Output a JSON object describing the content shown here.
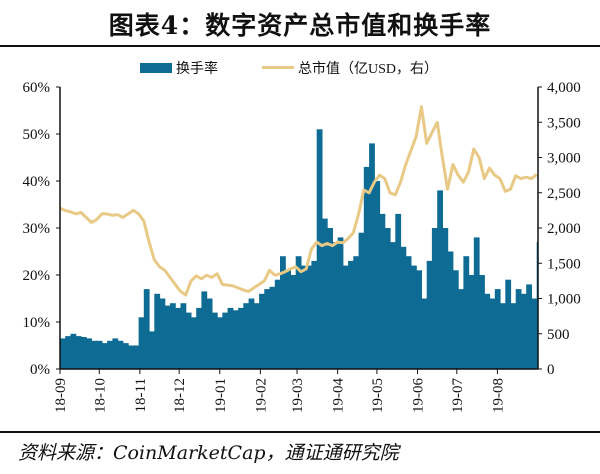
{
  "title": "图表4：数字资产总市值和换手率",
  "source": "资料来源：CoinMarketCap，通证通研究院",
  "colors": {
    "bar": "#0e6b94",
    "line": "#e8c985",
    "axis": "#111111"
  },
  "chart_data": {
    "type": "bar+line",
    "legend": [
      "换手率",
      "总市值（亿USD，右）"
    ],
    "legend_placement": "top-center",
    "x_tick_labels": [
      "18-09",
      "18-10",
      "18-11",
      "18-12",
      "19-01",
      "19-02",
      "19-03",
      "19-04",
      "19-05",
      "19-06",
      "19-07",
      "19-08"
    ],
    "x_tick_days": [
      0,
      30,
      61,
      91,
      122,
      153,
      181,
      212,
      242,
      273,
      303,
      334
    ],
    "x_range_days": [
      0,
      365
    ],
    "x_step_days": 4,
    "left_axis": {
      "label": "换手率",
      "ylim": [
        0,
        60
      ],
      "ticks": [
        "0%",
        "10%",
        "20%",
        "30%",
        "40%",
        "50%",
        "60%"
      ]
    },
    "right_axis": {
      "label": "总市值（亿USD）",
      "ylim": [
        0,
        4000
      ],
      "ticks": [
        "0",
        "500",
        "1,000",
        "1,500",
        "2,000",
        "2,500",
        "3,000",
        "3,500",
        "4,000"
      ]
    },
    "series": [
      {
        "name": "换手率",
        "type": "bar",
        "unit": "%",
        "values": [
          6.5,
          7,
          7.5,
          7,
          6.8,
          6.5,
          6,
          6,
          5.5,
          6,
          6.5,
          6,
          5.5,
          5,
          5,
          11,
          17,
          8,
          16,
          15,
          13.5,
          14,
          13,
          14,
          12,
          11,
          13,
          16.5,
          15,
          12,
          11,
          12,
          13,
          12.5,
          13,
          14,
          15,
          14,
          16,
          17,
          17.5,
          19,
          24,
          21,
          20,
          24,
          22,
          22,
          23,
          51,
          32,
          30,
          27,
          28,
          22,
          23,
          24,
          29,
          43,
          48,
          40,
          33,
          30,
          27,
          33,
          26,
          24,
          22,
          21,
          15,
          23,
          30,
          38,
          30,
          25,
          21,
          17,
          24,
          20,
          28,
          20,
          16,
          15,
          17,
          14,
          19,
          14,
          17,
          16,
          18,
          15,
          27
        ]
      },
      {
        "name": "总市值（亿USD，右）",
        "type": "line",
        "unit": "亿USD",
        "values": [
          2280,
          2250,
          2230,
          2200,
          2220,
          2150,
          2080,
          2120,
          2200,
          2200,
          2180,
          2190,
          2150,
          2200,
          2250,
          2200,
          2100,
          1800,
          1550,
          1450,
          1400,
          1300,
          1200,
          1100,
          1050,
          1250,
          1320,
          1280,
          1330,
          1300,
          1350,
          1200,
          1190,
          1180,
          1150,
          1120,
          1100,
          1150,
          1200,
          1250,
          1400,
          1330,
          1350,
          1380,
          1420,
          1450,
          1380,
          1420,
          1700,
          1800,
          1750,
          1780,
          1750,
          1800,
          1790,
          1850,
          1930,
          2200,
          2540,
          2500,
          2650,
          2750,
          2700,
          2500,
          2470,
          2650,
          2900,
          3100,
          3300,
          3720,
          3200,
          3350,
          3500,
          3000,
          2550,
          2900,
          2750,
          2650,
          2800,
          3120,
          3000,
          2700,
          2850,
          2750,
          2700,
          2520,
          2550,
          2740,
          2700,
          2720,
          2700,
          2760
        ]
      }
    ]
  }
}
